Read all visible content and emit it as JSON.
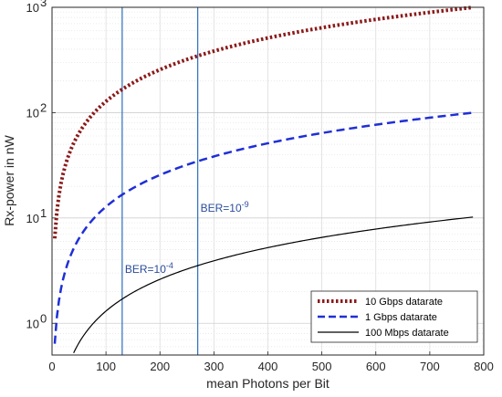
{
  "chart_data": {
    "type": "line",
    "xlabel": "mean Photons per Bit",
    "ylabel": "Rx-power in nW",
    "xlim": [
      0,
      800
    ],
    "ylim": [
      0.5,
      1000
    ],
    "y_scale": "log",
    "grid": true,
    "legend_position": "bottom-right",
    "x_ticks": [
      0,
      100,
      200,
      300,
      400,
      500,
      600,
      700,
      800
    ],
    "x_tick_labels": [
      "0",
      "100",
      "200",
      "300",
      "400",
      "500",
      "600",
      "700",
      "800"
    ],
    "y_ticks": [
      1,
      10,
      100,
      1000
    ],
    "y_tick_labels": [
      {
        "base": "10",
        "exp": "0"
      },
      {
        "base": "10",
        "exp": "1"
      },
      {
        "base": "10",
        "exp": "2"
      },
      {
        "base": "10",
        "exp": "3"
      }
    ],
    "series": [
      {
        "name": "10 Gbps datarate",
        "color": "#8b1a1a",
        "style": "dotted",
        "x": [
          5,
          780
        ],
        "y": [
          6.4,
          998
        ]
      },
      {
        "name": "1 Gbps datarate",
        "color": "#1f2fd6",
        "style": "dashed",
        "x": [
          5,
          780
        ],
        "y": [
          0.64,
          99.8
        ]
      },
      {
        "name": "100 Mbps datarate",
        "color": "#000000",
        "style": "solid",
        "x": [
          40,
          780
        ],
        "y": [
          0.51,
          10.2
        ]
      }
    ],
    "vertical_lines": [
      {
        "x": 130,
        "label_base": "BER=10",
        "label_exp": "-4",
        "label_y": 3.0,
        "color": "#2b6fbd"
      },
      {
        "x": 270,
        "label_base": "BER=10",
        "label_exp": "-9",
        "label_y": 11.5,
        "color": "#2b6fbd"
      }
    ]
  }
}
